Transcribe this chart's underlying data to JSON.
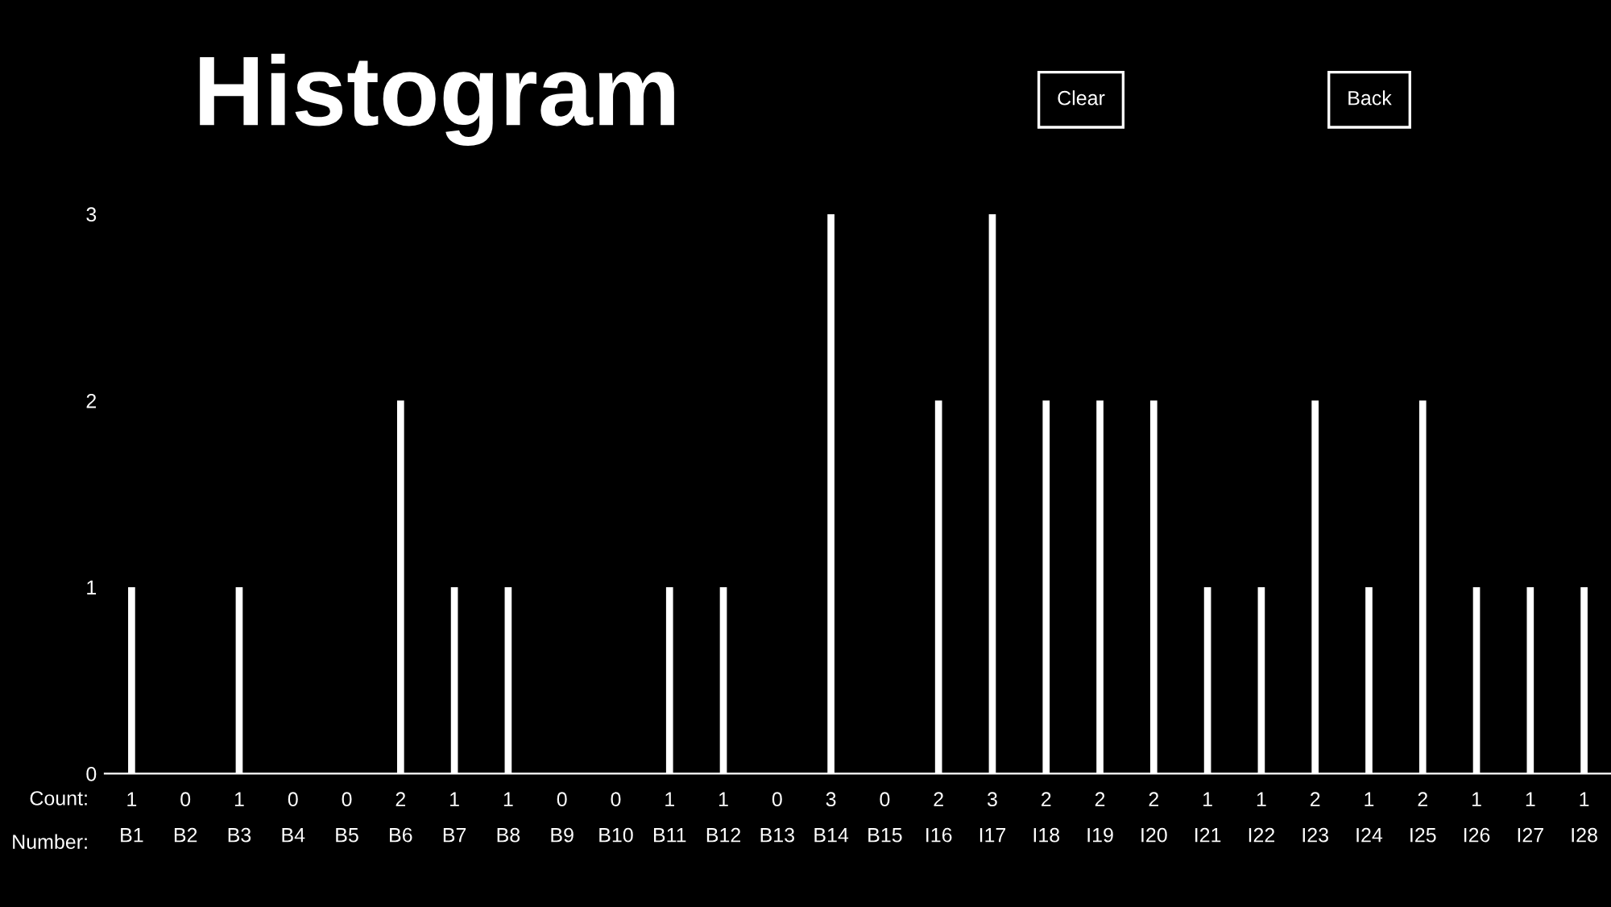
{
  "chart_data": {
    "type": "bar",
    "title": "Histogram",
    "categories": [
      "B1",
      "B2",
      "B3",
      "B4",
      "B5",
      "B6",
      "B7",
      "B8",
      "B9",
      "B10",
      "B11",
      "B12",
      "B13",
      "B14",
      "B15",
      "I16",
      "I17",
      "I18",
      "I19",
      "I20",
      "I21",
      "I22",
      "I23",
      "I24",
      "I25",
      "I26",
      "I27",
      "I28"
    ],
    "values": [
      1,
      0,
      1,
      0,
      0,
      2,
      1,
      1,
      0,
      0,
      1,
      1,
      0,
      3,
      0,
      2,
      3,
      2,
      2,
      2,
      1,
      1,
      2,
      1,
      2,
      1,
      1,
      1
    ],
    "color": "#ffffff",
    "ylim": [
      0,
      3
    ],
    "yticks": [
      0,
      1,
      2,
      3
    ],
    "data_labels": true,
    "grid": false,
    "legend": false,
    "annotations": [
      "Count:",
      "Number:",
      "Clear",
      "Back"
    ]
  }
}
